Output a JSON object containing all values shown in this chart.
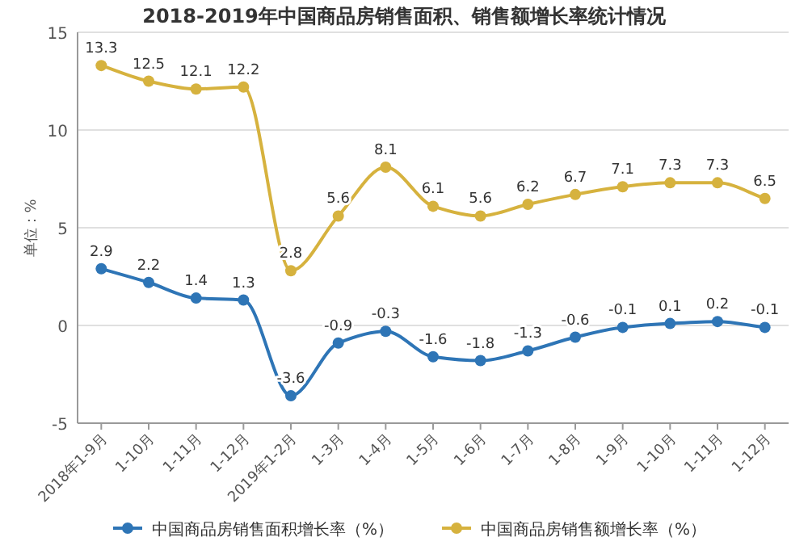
{
  "chart_data": {
    "type": "line",
    "title": "2018-2019年中国商品房销售面积、销售额增长率统计情况",
    "ylabel": "单位：%",
    "categories": [
      "2018年1-9月",
      "1-10月",
      "1-11月",
      "1-12月",
      "2019年1-2月",
      "1-3月",
      "1-4月",
      "1-5月",
      "1-6月",
      "1-7月",
      "1-8月",
      "1-9月",
      "1-10月",
      "1-11月",
      "1-12月"
    ],
    "series": [
      {
        "name": "中国商品房销售面积增长率（%）",
        "color": "#2e75b6",
        "values": [
          2.9,
          2.2,
          1.4,
          1.3,
          -3.6,
          -0.9,
          -0.3,
          -1.6,
          -1.8,
          -1.3,
          -0.6,
          -0.1,
          0.1,
          0.2,
          -0.1
        ]
      },
      {
        "name": "中国商品房销售额增长率（%）",
        "color": "#d6b23e",
        "values": [
          13.3,
          12.5,
          12.1,
          12.2,
          2.8,
          5.6,
          8.1,
          6.1,
          5.6,
          6.2,
          6.7,
          7.1,
          7.3,
          7.3,
          6.5
        ]
      }
    ],
    "ylim": [
      -5,
      15
    ],
    "yticks": [
      -5,
      0,
      5,
      10,
      15
    ],
    "grid": "y",
    "legend": "bottom",
    "marker": "circle",
    "line_style": "solid",
    "data_labels": true
  }
}
